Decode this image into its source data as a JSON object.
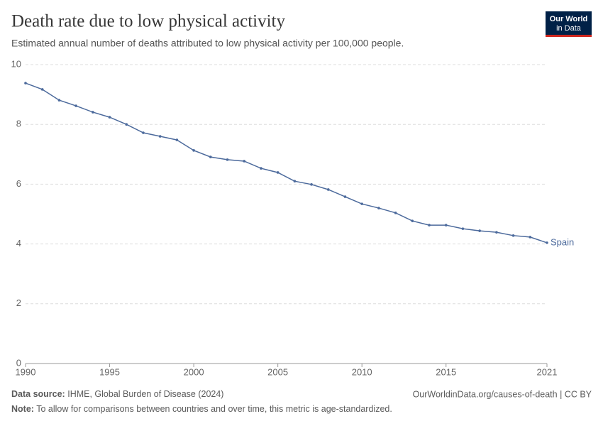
{
  "chart_data": {
    "type": "line",
    "title": "Death rate due to low physical activity",
    "subtitle": "Estimated annual number of deaths attributed to low physical activity per 100,000 people.",
    "logo": [
      "Our World",
      "in Data"
    ],
    "source_label": "Data source:",
    "source": "IHME, Global Burden of Disease (2024)",
    "url": "OurWorldinData.org/causes-of-death | CC BY",
    "note_label": "Note:",
    "note": "To allow for comparisons between countries and over time, this metric is age-standardized.",
    "x": [
      1990,
      1991,
      1992,
      1993,
      1994,
      1995,
      1996,
      1997,
      1998,
      1999,
      2000,
      2001,
      2002,
      2003,
      2004,
      2005,
      2006,
      2007,
      2008,
      2009,
      2010,
      2011,
      2012,
      2013,
      2014,
      2015,
      2016,
      2017,
      2018,
      2019,
      2020,
      2021
    ],
    "series": [
      {
        "name": "Spain",
        "color": "#4c6a9c",
        "values": [
          9.38,
          9.17,
          8.81,
          8.62,
          8.41,
          8.24,
          8.0,
          7.72,
          7.6,
          7.48,
          7.13,
          6.91,
          6.82,
          6.77,
          6.53,
          6.39,
          6.1,
          5.99,
          5.82,
          5.58,
          5.34,
          5.2,
          5.04,
          4.77,
          4.63,
          4.63,
          4.51,
          4.44,
          4.39,
          4.28,
          4.23,
          4.04
        ]
      }
    ],
    "xlim": [
      1990,
      2021
    ],
    "xticks": [
      1990,
      1995,
      2000,
      2005,
      2010,
      2015,
      2021
    ],
    "ylim": [
      0,
      10
    ],
    "yticks": [
      0,
      2,
      4,
      6,
      8,
      10
    ],
    "grid": true
  }
}
